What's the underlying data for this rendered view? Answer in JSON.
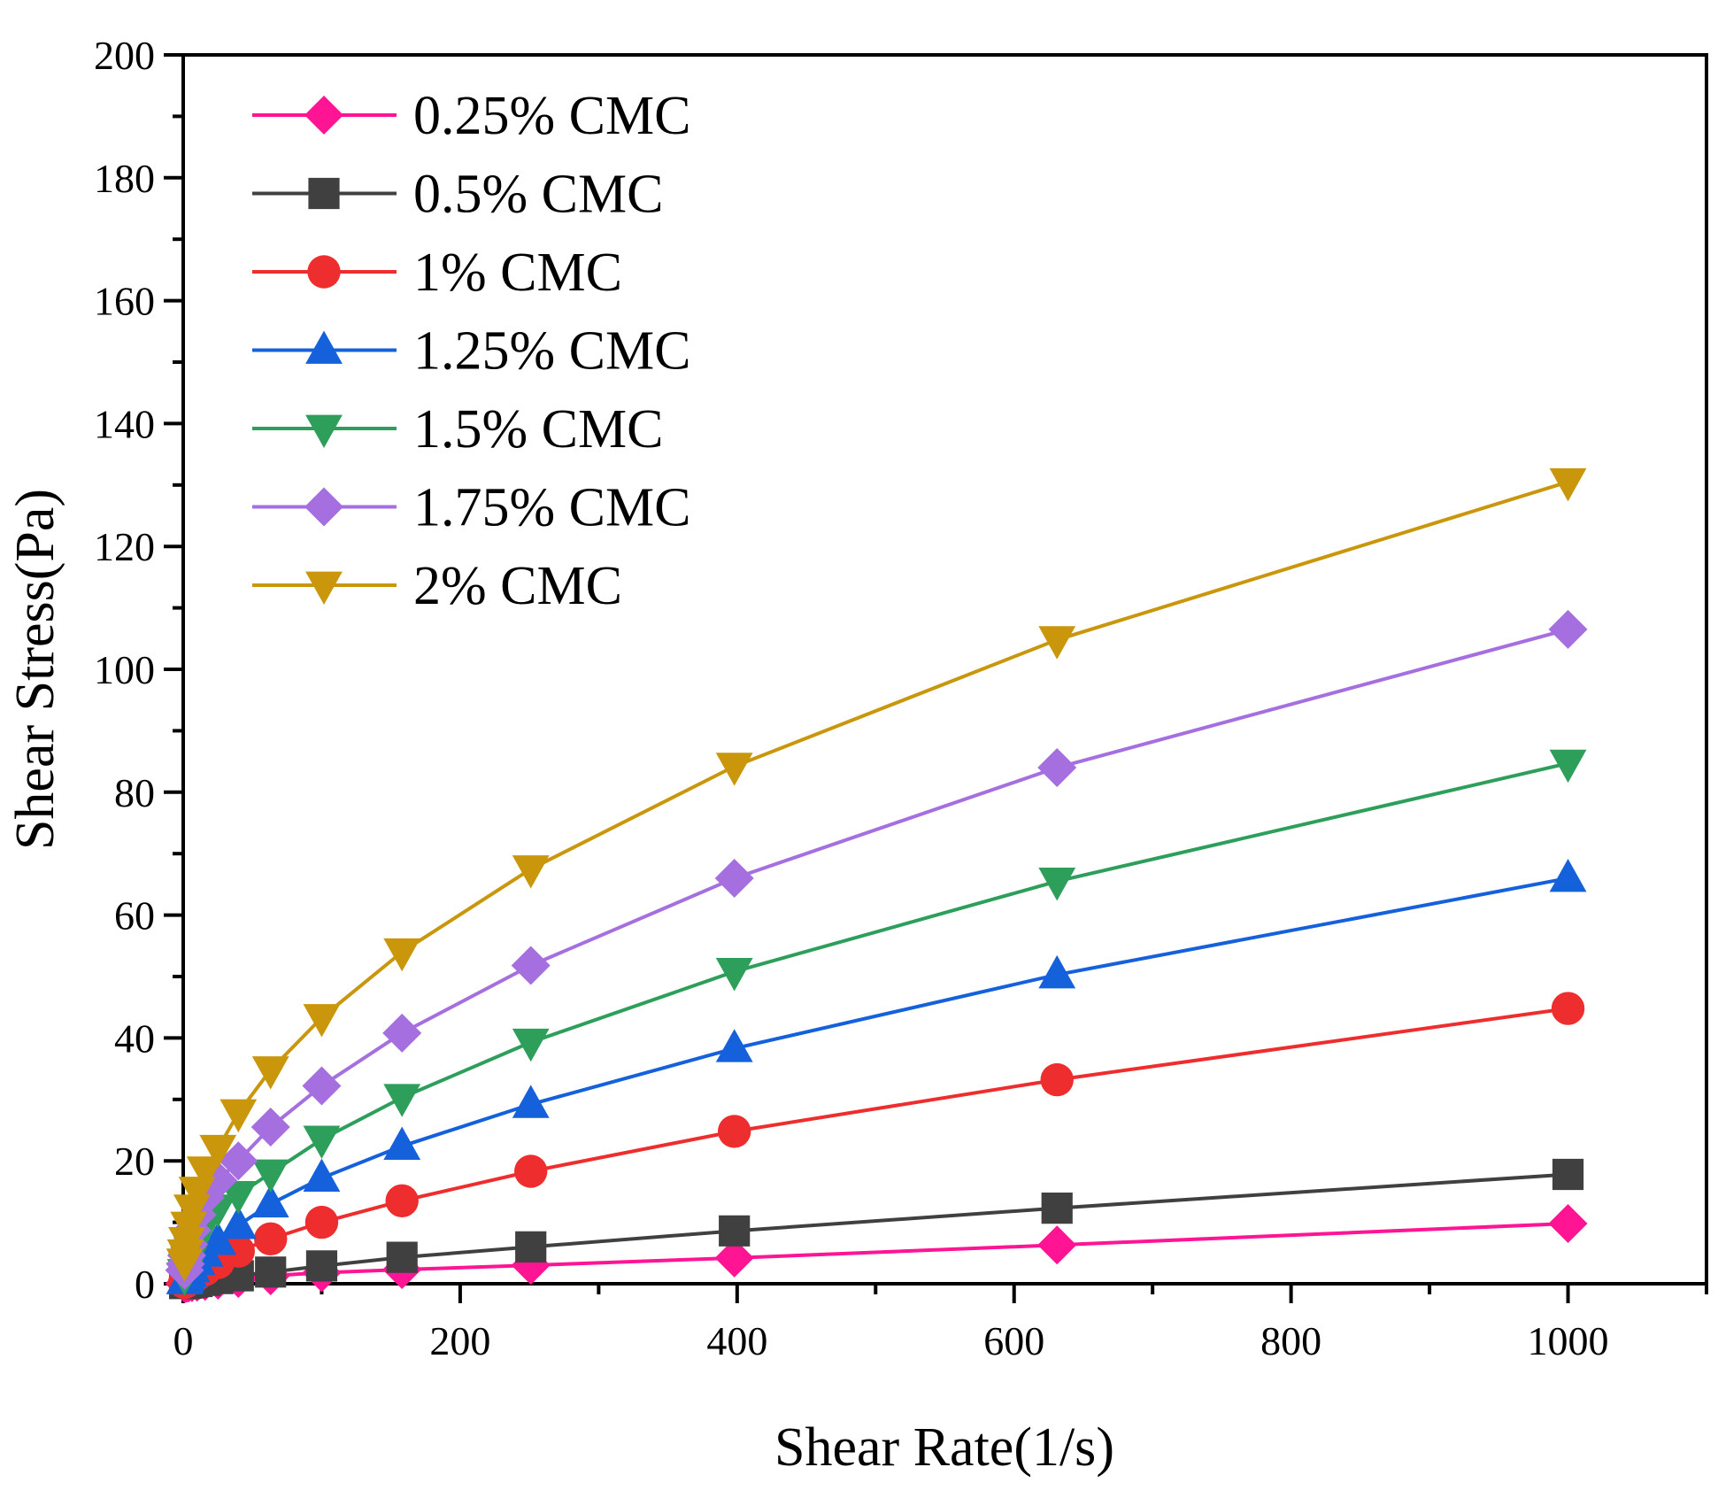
{
  "chart_data": {
    "type": "line",
    "title": "",
    "xlabel": "Shear Rate(1/s)",
    "ylabel": "Shear Stress(Pa)",
    "xlim": [
      0,
      1100
    ],
    "ylim": [
      0,
      200
    ],
    "x_ticks": [
      0,
      200,
      400,
      600,
      800,
      1000
    ],
    "x_tick_labels": [
      "0",
      "200",
      "400",
      "600",
      "800",
      "1000"
    ],
    "x_minor_ticks": [
      100,
      300,
      500,
      700,
      900,
      1100
    ],
    "y_ticks": [
      0,
      20,
      40,
      60,
      80,
      100,
      120,
      140,
      160,
      180,
      200
    ],
    "y_tick_labels": [
      "0",
      "20",
      "40",
      "60",
      "80",
      "100",
      "120",
      "140",
      "160",
      "180",
      "200"
    ],
    "y_minor_ticks": [
      10,
      30,
      50,
      70,
      90,
      110,
      130,
      150,
      170,
      190
    ],
    "grid": false,
    "legend_position": "top-left",
    "x": [
      1,
      1.58,
      2.51,
      3.98,
      6.31,
      10,
      15.8,
      25.1,
      39.8,
      63.1,
      100,
      158,
      251,
      398,
      631,
      1000
    ],
    "series": [
      {
        "name": "0.25% CMC",
        "color": "#FF1493",
        "marker": "diamond",
        "values": [
          0.03,
          0.05,
          0.08,
          0.12,
          0.18,
          0.26,
          0.39,
          0.58,
          0.87,
          1.3,
          1.8,
          2.3,
          3.0,
          4.2,
          6.3,
          9.8
        ]
      },
      {
        "name": "0.5% CMC",
        "color": "#404040",
        "marker": "square",
        "values": [
          0.04,
          0.06,
          0.1,
          0.15,
          0.23,
          0.36,
          0.55,
          0.85,
          1.3,
          1.9,
          2.9,
          4.3,
          6.0,
          8.6,
          12.3,
          17.8
        ]
      },
      {
        "name": "1% CMC",
        "color": "#EE2E2E",
        "marker": "circle",
        "values": [
          0.2,
          0.3,
          0.46,
          0.7,
          1.05,
          1.55,
          2.3,
          3.45,
          5.3,
          7.3,
          10.0,
          13.5,
          18.3,
          24.8,
          33.2,
          44.8
        ]
      },
      {
        "name": "1.25% CMC",
        "color": "#1560DB",
        "marker": "triangle-up",
        "values": [
          0.5,
          0.75,
          1.1,
          1.65,
          2.45,
          3.6,
          5.0,
          6.9,
          9.5,
          13.0,
          17.2,
          22.4,
          29.2,
          38.3,
          50.3,
          66.0
        ]
      },
      {
        "name": "1.5% CMC",
        "color": "#2E9E5B",
        "marker": "triangle-down",
        "values": [
          1.2,
          1.8,
          2.7,
          3.8,
          5.3,
          7.2,
          9.6,
          12.3,
          14.5,
          18.0,
          23.5,
          30.3,
          39.3,
          50.8,
          65.5,
          84.7
        ]
      },
      {
        "name": "1.75% CMC",
        "color": "#A56FE0",
        "marker": "diamond",
        "values": [
          2.2,
          3.2,
          4.6,
          6.4,
          8.7,
          11.2,
          14.0,
          16.8,
          20.0,
          25.5,
          32.2,
          40.8,
          51.8,
          66.0,
          84.0,
          106.5
        ]
      },
      {
        "name": "2% CMC",
        "color": "#C9960C",
        "marker": "triangle-down",
        "values": [
          3.5,
          5.0,
          7.0,
          9.5,
          12.3,
          15.2,
          18.5,
          22.0,
          27.8,
          34.8,
          43.3,
          54.0,
          67.5,
          84.2,
          104.8,
          130.5
        ]
      }
    ]
  }
}
